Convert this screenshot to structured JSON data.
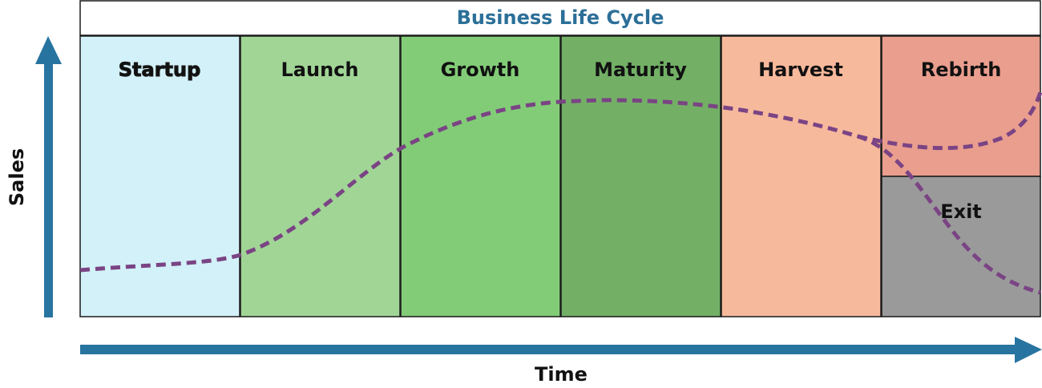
{
  "title": "Business Life Cycle",
  "stages": [
    {
      "label": "Startup",
      "color": "#d3f1f8"
    },
    {
      "label": "Launch",
      "color": "#a1d596"
    },
    {
      "label": "Growth",
      "color": "#82cc77"
    },
    {
      "label": "Maturity",
      "color": "#73b066"
    },
    {
      "label": "Harvest",
      "color": "#f7b99c"
    }
  ],
  "end_stages": {
    "rebirth": {
      "label": "Rebirth",
      "color": "#e99e8e"
    },
    "exit": {
      "label": "Exit",
      "color": "#9a9a9a"
    }
  },
  "axes": {
    "y_label": "Sales",
    "x_label": "Time"
  },
  "colors": {
    "arrow": "#2874a0",
    "title": "#2b6f98",
    "curve": "#7a4484",
    "border": "#1a1a1a"
  }
}
